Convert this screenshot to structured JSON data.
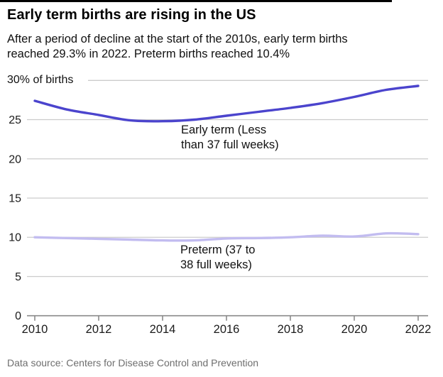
{
  "header": {
    "title": "Early term births are rising in the US",
    "subtitle": "After a period of decline at the start of the 2010s, early term births\nreached 29.3% in 2022. Preterm births reached 10.4%"
  },
  "footer": {
    "source": "Data source: Centers for Disease Control and Prevention"
  },
  "colors": {
    "early_term_line": "#4b44cd",
    "preterm_line": "#c2bcf0",
    "gridline": "#cccccc",
    "axis": "#8a8a8a",
    "tick_text": "#1a1a1a"
  },
  "chart_data": {
    "type": "line",
    "x": [
      2010,
      2011,
      2012,
      2013,
      2014,
      2015,
      2016,
      2017,
      2018,
      2019,
      2020,
      2021,
      2022
    ],
    "series": [
      {
        "name": "Early term (Less than 37 full weeks)",
        "label": "Early term (Less\nthan 37 full weeks)",
        "color": "#4b44cd",
        "values": [
          27.4,
          26.3,
          25.6,
          24.9,
          24.8,
          25.0,
          25.5,
          26.0,
          26.5,
          27.1,
          27.9,
          28.8,
          29.3
        ]
      },
      {
        "name": "Preterm (37 to 38 full weeks)",
        "label": "Preterm (37 to\n38 full weeks)",
        "color": "#c2bcf0",
        "values": [
          10.0,
          9.9,
          9.8,
          9.7,
          9.6,
          9.6,
          9.85,
          9.9,
          10.0,
          10.2,
          10.1,
          10.5,
          10.4
        ]
      }
    ],
    "title": "Early term births are rising in the US",
    "xlabel": "",
    "ylabel": "% of births",
    "ylim": [
      0,
      30
    ],
    "y_axis": {
      "top_label": "30% of births",
      "ticks": [
        0,
        5,
        10,
        15,
        20,
        25
      ],
      "top_tick": 30
    },
    "x_axis": {
      "ticks": [
        2010,
        2012,
        2014,
        2016,
        2018,
        2020,
        2022
      ]
    },
    "grid": true,
    "legend_position": "inline-annotations"
  }
}
